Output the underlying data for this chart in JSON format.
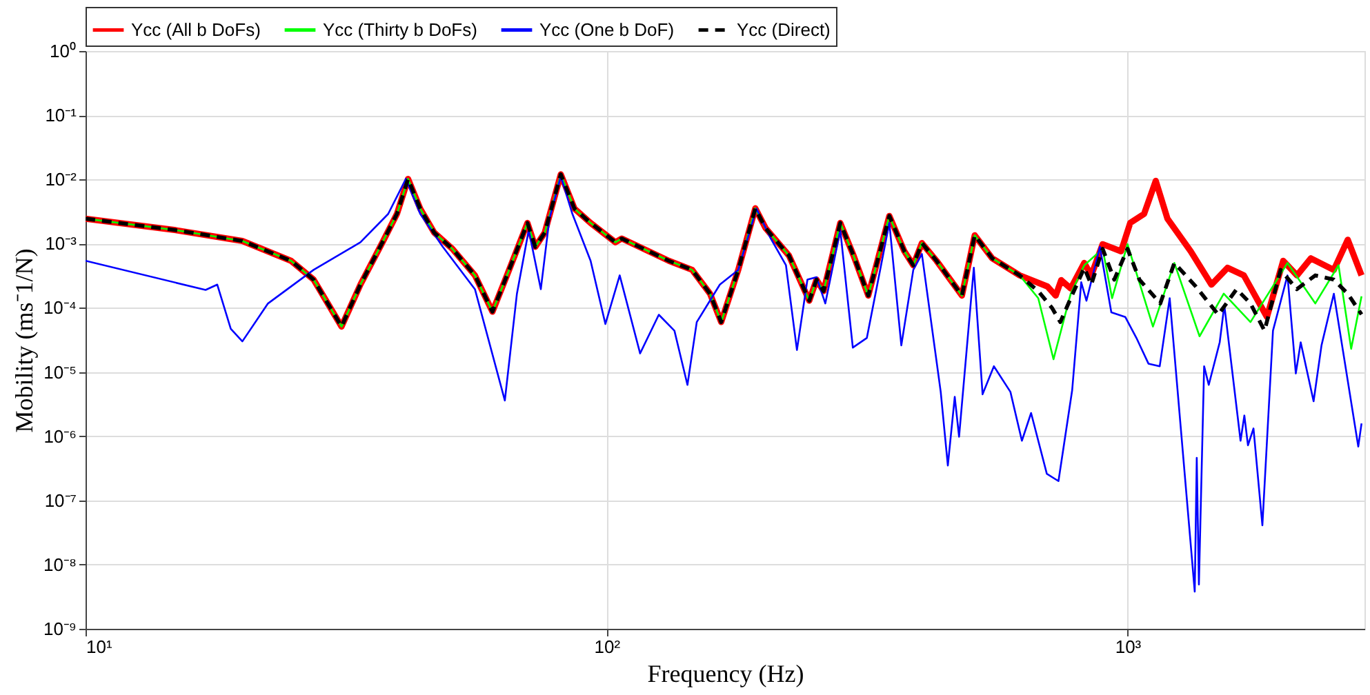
{
  "chart_data": {
    "type": "line",
    "xlabel": "Frequency (Hz)",
    "ylabel": "Mobility (ms⁻1/N)",
    "log": "xy",
    "grid": true,
    "legend": "top",
    "xlim": [
      10,
      2850
    ],
    "xticks": [
      {
        "value": 10,
        "label": "10¹"
      },
      {
        "value": 100,
        "label": "10²"
      },
      {
        "value": 1000,
        "label": "10³"
      }
    ],
    "ylim": [
      1e-09,
      1
    ],
    "yticks": [
      {
        "value": 1e-09,
        "label": "10⁻⁹"
      },
      {
        "value": 1e-08,
        "label": "10⁻⁸"
      },
      {
        "value": 1e-07,
        "label": "10⁻⁷"
      },
      {
        "value": 1e-06,
        "label": "10⁻⁶"
      },
      {
        "value": 1e-05,
        "label": "10⁻⁵"
      },
      {
        "value": 0.0001,
        "label": "10⁻⁴"
      },
      {
        "value": 0.001,
        "label": "10⁻³"
      },
      {
        "value": 0.01,
        "label": "10⁻²"
      },
      {
        "value": 0.1,
        "label": "10⁻¹"
      },
      {
        "value": 1,
        "label": "10⁰"
      }
    ],
    "series": [
      {
        "name": "Ycc (All b DoFs)",
        "color": "#ff0000",
        "line_style": "solid",
        "x": [
          10,
          14.9,
          20,
          24.8,
          27.4,
          31,
          33.7,
          37.2,
          39.6,
          41.6,
          43.9,
          46.7,
          50.6,
          55.9,
          60.4,
          64.4,
          70.5,
          73,
          76.1,
          81.7,
          86.8,
          93.2,
          104,
          107,
          131.7,
          146,
          158,
          166,
          179,
          193,
          202,
          224,
          245,
          253,
          261,
          281,
          298,
          318,
          349,
          373,
          388,
          403,
          430,
          481,
          509,
          550,
          621,
          702,
          728,
          746,
          778,
          826,
          852,
          896,
          972,
          1012,
          1076,
          1133,
          1193,
          1322,
          1449,
          1556,
          1672,
          1852,
          1990,
          2115,
          2249,
          2489,
          2647,
          2813
        ],
        "values": [
          0.00245,
          0.00162,
          0.0011,
          0.00054,
          0.000275,
          5.1e-05,
          0.00023,
          0.00107,
          0.0029,
          0.0102,
          0.0035,
          0.00148,
          0.00083,
          0.00032,
          8.7e-05,
          0.00032,
          0.0021,
          0.00089,
          0.00148,
          0.012,
          0.0035,
          0.0021,
          0.00105,
          0.0012,
          0.00054,
          0.00039,
          0.000166,
          6e-05,
          0.00039,
          0.00355,
          0.00174,
          0.00065,
          0.000129,
          0.000275,
          0.000182,
          0.0021,
          0.00065,
          0.000155,
          0.0027,
          0.00076,
          0.00046,
          0.00102,
          0.00054,
          0.000155,
          0.00135,
          0.00059,
          0.00032,
          0.000215,
          0.000155,
          0.00027,
          0.0002,
          0.0005,
          0.00032,
          0.00098,
          0.00076,
          0.0021,
          0.0029,
          0.0095,
          0.00245,
          0.00076,
          0.00023,
          0.00042,
          0.00032,
          7.2e-05,
          0.00054,
          0.00032,
          0.00059,
          0.00039,
          0.00115,
          0.00032
        ]
      },
      {
        "name": "Ycc (Thirty b DoFs)",
        "color": "#00ff00",
        "line_style": "solid",
        "x": [
          10,
          14.9,
          20,
          24.8,
          27.4,
          31,
          33.7,
          37.2,
          39.6,
          41.6,
          43.9,
          46.7,
          50.6,
          55.9,
          60.4,
          64.4,
          70.5,
          73,
          76.1,
          81.7,
          86.8,
          93.2,
          104,
          107,
          131.7,
          146,
          158,
          166,
          179,
          193,
          202,
          224,
          245,
          253,
          261,
          281,
          298,
          318,
          349,
          373,
          388,
          403,
          430,
          481,
          509,
          550,
          621,
          674,
          721,
          778,
          826,
          896,
          934,
          1000,
          1119,
          1230,
          1375,
          1530,
          1722,
          2028,
          2293,
          2541,
          2687,
          2813
        ],
        "values": [
          0.00245,
          0.00162,
          0.0011,
          0.00054,
          0.000275,
          5.1e-05,
          0.00023,
          0.00107,
          0.0029,
          0.0102,
          0.0035,
          0.00148,
          0.00083,
          0.00032,
          8.7e-05,
          0.00032,
          0.0021,
          0.00089,
          0.00148,
          0.012,
          0.0035,
          0.0021,
          0.00105,
          0.0012,
          0.00054,
          0.00039,
          0.000166,
          6e-05,
          0.00039,
          0.00355,
          0.00174,
          0.00065,
          0.000129,
          0.000275,
          0.000182,
          0.0021,
          0.00065,
          0.000155,
          0.0027,
          0.00076,
          0.00046,
          0.00102,
          0.00054,
          0.000155,
          0.00135,
          0.00059,
          0.00032,
          0.000141,
          1.58e-05,
          0.000166,
          0.00046,
          0.00083,
          0.000141,
          0.00098,
          5.1e-05,
          0.0005,
          3.6e-05,
          0.000166,
          6e-05,
          0.0005,
          0.000117,
          0.00046,
          2.3e-05,
          0.000151
        ]
      },
      {
        "name": "Ycc (One b DoF)",
        "color": "#0000ff",
        "line_style": "solid",
        "x": [
          10,
          17.0,
          17.9,
          19.0,
          20.0,
          22.4,
          27.4,
          33.7,
          38.1,
          41.2,
          43.9,
          48.5,
          55.9,
          63.8,
          67.3,
          70.9,
          74.8,
          77.7,
          81.7,
          86,
          93.2,
          99.5,
          106,
          116,
          126,
          135,
          143,
          149,
          165,
          179,
          194,
          206,
          221,
          232,
          243,
          253,
          263,
          281,
          297,
          316,
          349,
          368,
          388,
          403,
          438,
          452,
          466,
          475,
          507,
          527,
          554,
          596,
          627,
          653,
          700,
          737,
          783,
          815,
          834,
          885,
          931,
          990,
          1040,
          1097,
          1153,
          1205,
          1346,
          1358,
          1371,
          1403,
          1432,
          1503,
          1534,
          1648,
          1676,
          1703,
          1745,
          1815,
          1902,
          2028,
          2104,
          2150,
          2276,
          2357,
          2489,
          2773,
          2813
        ],
        "values": [
          0.00054,
          0.00019,
          0.00023,
          4.7e-05,
          3e-05,
          0.000117,
          0.00039,
          0.00105,
          0.0029,
          0.0102,
          0.0029,
          0.00089,
          0.000195,
          3.6e-06,
          0.000166,
          0.00162,
          0.000195,
          0.00245,
          0.0112,
          0.0029,
          0.00054,
          5.6e-05,
          0.00032,
          1.95e-05,
          7.8e-05,
          4.4e-05,
          6.3e-06,
          6e-05,
          0.00023,
          0.00039,
          0.0035,
          0.00126,
          0.00046,
          2.2e-05,
          0.000275,
          0.0003,
          0.000117,
          0.00162,
          2.4e-05,
          3.4e-05,
          0.0021,
          2.6e-05,
          0.00039,
          0.00069,
          4.9e-06,
          3.5e-07,
          4.1e-06,
          9.8e-07,
          0.00042,
          4.5e-06,
          1.23e-05,
          4.9e-06,
          8.5e-07,
          2.3e-06,
          2.6e-07,
          2e-07,
          5.2e-06,
          0.00025,
          0.000129,
          0.00089,
          8.5e-05,
          7.2e-05,
          3.4e-05,
          1.35e-05,
          1.23e-05,
          0.000141,
          3.8e-09,
          4.6e-07,
          4.9e-09,
          1.23e-05,
          6.3e-06,
          2.9e-05,
          0.00011,
          8.5e-07,
          2.1e-06,
          7.2e-07,
          1.32e-06,
          4.1e-08,
          4.4e-05,
          0.00032,
          9.5e-06,
          2.9e-05,
          3.5e-06,
          2.6e-05,
          0.000166,
          6.9e-07,
          1.58e-06
        ]
      },
      {
        "name": "Ycc (Direct)",
        "color": "#000000",
        "line_style": "dashed",
        "x": [
          10,
          14.9,
          20,
          24.8,
          27.4,
          31,
          33.7,
          37.2,
          39.6,
          41.6,
          43.9,
          46.7,
          50.6,
          55.9,
          60.4,
          64.4,
          70.5,
          73,
          76.1,
          81.7,
          86.8,
          93.2,
          104,
          107,
          131.7,
          146,
          158,
          166,
          179,
          193,
          202,
          224,
          245,
          253,
          261,
          281,
          298,
          318,
          349,
          373,
          388,
          403,
          430,
          481,
          509,
          550,
          621,
          674,
          716,
          743,
          785,
          826,
          852,
          896,
          943,
          1000,
          1054,
          1156,
          1230,
          1349,
          1494,
          1619,
          1722,
          1832,
          1967,
          2113,
          2293,
          2489,
          2647,
          2813
        ],
        "values": [
          0.00245,
          0.00162,
          0.0011,
          0.00054,
          0.000275,
          5.1e-05,
          0.00023,
          0.00107,
          0.0029,
          0.0102,
          0.0035,
          0.00148,
          0.00083,
          0.00032,
          8.7e-05,
          0.00032,
          0.0021,
          0.00089,
          0.00148,
          0.012,
          0.0035,
          0.0021,
          0.00105,
          0.0012,
          0.00054,
          0.00039,
          0.000166,
          6e-05,
          0.00039,
          0.00355,
          0.00174,
          0.00065,
          0.000129,
          0.000275,
          0.000182,
          0.0021,
          0.00065,
          0.000155,
          0.0027,
          0.00076,
          0.00046,
          0.00102,
          0.00054,
          0.000155,
          0.00135,
          0.00059,
          0.00032,
          0.000182,
          0.0001,
          6e-05,
          0.000166,
          0.00042,
          0.00023,
          0.00083,
          0.000275,
          0.00083,
          0.000275,
          0.000117,
          0.0005,
          0.00022,
          7.8e-05,
          0.000195,
          0.000117,
          4.4e-05,
          0.00039,
          0.000195,
          0.00032,
          0.000275,
          0.000166,
          7.9e-05
        ]
      }
    ]
  }
}
